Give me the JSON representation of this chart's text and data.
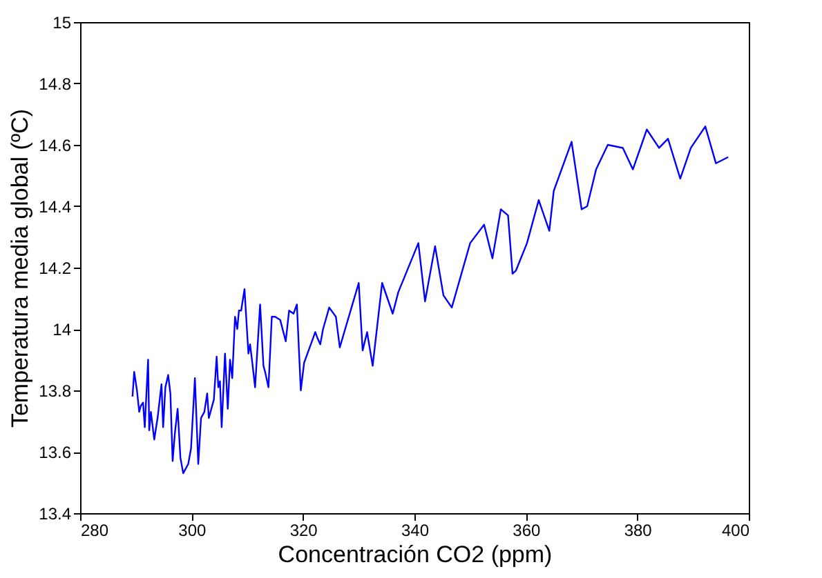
{
  "chart_data": {
    "type": "line",
    "xlabel": "Concentración CO2 (ppm)",
    "ylabel": "Temperatura media global (ºC)",
    "xlim": [
      280,
      400
    ],
    "xticks": [
      280,
      300,
      320,
      340,
      360,
      380,
      400
    ],
    "ylim": [
      13.4,
      15
    ],
    "yticks": [
      13.4,
      13.6,
      13.8,
      14,
      14.2,
      14.4,
      14.6,
      14.8,
      15
    ],
    "grid": false,
    "series": [
      {
        "color": "#0000ff",
        "x": [
          289.4,
          289.7,
          290.2,
          290.6,
          290.9,
          291.3,
          291.6,
          292.2,
          292.4,
          292.7,
          293.3,
          293.9,
          294.6,
          294.9,
          295.3,
          295.8,
          296.2,
          296.6,
          297.0,
          297.5,
          298.0,
          298.5,
          299.4,
          299.9,
          300.6,
          301.2,
          301.7,
          302.3,
          302.8,
          303.1,
          304.0,
          304.5,
          304.8,
          305.1,
          305.4,
          306.0,
          306.5,
          306.9,
          307.3,
          307.8,
          308.2,
          308.5,
          308.9,
          309.5,
          310.2,
          310.5,
          310.9,
          311.4,
          312.3,
          312.9,
          313.2,
          313.8,
          314.4,
          315.0,
          315.9,
          316.9,
          317.5,
          318.3,
          318.9,
          319.6,
          320.2,
          321.0,
          321.6,
          322.2,
          322.6,
          323.1,
          323.6,
          324.7,
          325.9,
          326.6,
          330.0,
          330.7,
          331.5,
          332.5,
          334.2,
          336.1,
          337.1,
          340.7,
          341.9,
          343.7,
          345.2,
          346.7,
          350.0,
          352.5,
          354.0,
          355.5,
          356.8,
          357.6,
          358.2,
          360.2,
          362.3,
          364.2,
          365.0,
          368.2,
          370.0,
          371.0,
          372.6,
          374.7,
          377.4,
          379.2,
          381.7,
          383.9,
          385.5,
          387.7,
          389.6,
          392.2,
          394.1,
          396.3
        ],
        "values": [
          13.78,
          13.86,
          13.8,
          13.73,
          13.75,
          13.76,
          13.68,
          13.9,
          13.67,
          13.73,
          13.64,
          13.71,
          13.82,
          13.68,
          13.81,
          13.85,
          13.79,
          13.57,
          13.66,
          13.74,
          13.58,
          13.53,
          13.56,
          13.61,
          13.84,
          13.56,
          13.71,
          13.73,
          13.79,
          13.71,
          13.77,
          13.91,
          13.81,
          13.83,
          13.68,
          13.92,
          13.74,
          13.9,
          13.84,
          14.04,
          14.0,
          14.06,
          14.06,
          14.13,
          13.92,
          13.95,
          13.89,
          13.81,
          14.08,
          13.88,
          13.86,
          13.81,
          14.04,
          14.04,
          14.03,
          13.96,
          14.06,
          14.05,
          14.08,
          13.8,
          13.89,
          13.93,
          13.96,
          13.99,
          13.97,
          13.95,
          14.0,
          14.07,
          14.04,
          13.94,
          14.15,
          13.93,
          13.99,
          13.88,
          14.15,
          14.05,
          14.12,
          14.28,
          14.09,
          14.27,
          14.11,
          14.07,
          14.28,
          14.34,
          14.23,
          14.39,
          14.37,
          14.18,
          14.19,
          14.28,
          14.42,
          14.32,
          14.45,
          14.61,
          14.39,
          14.4,
          14.52,
          14.6,
          14.59,
          14.52,
          14.65,
          14.59,
          14.62,
          14.49,
          14.59,
          14.66,
          14.54,
          14.56
        ]
      }
    ]
  }
}
